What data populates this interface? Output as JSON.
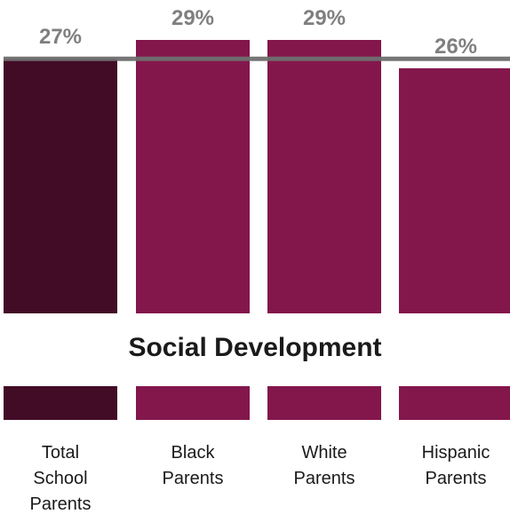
{
  "chart_data": {
    "type": "bar",
    "title": "Social Development",
    "categories": [
      "Total School Parents",
      "Black Parents",
      "White Parents",
      "Hispanic Parents"
    ],
    "category_lines": [
      [
        "Total",
        "School",
        "Parents"
      ],
      [
        "Black",
        "Parents"
      ],
      [
        "White",
        "Parents"
      ],
      [
        "Hispanic",
        "Parents"
      ]
    ],
    "values": [
      27,
      29,
      29,
      26
    ],
    "value_labels": [
      "27%",
      "29%",
      "29%",
      "26%"
    ],
    "reference_line": 27,
    "ylim": [
      0,
      32
    ],
    "colors": {
      "total_bar": "#430c26",
      "group_bar": "#83174c",
      "reference_line": "#6f6f6f",
      "value_label": "#7f7f7f"
    }
  }
}
